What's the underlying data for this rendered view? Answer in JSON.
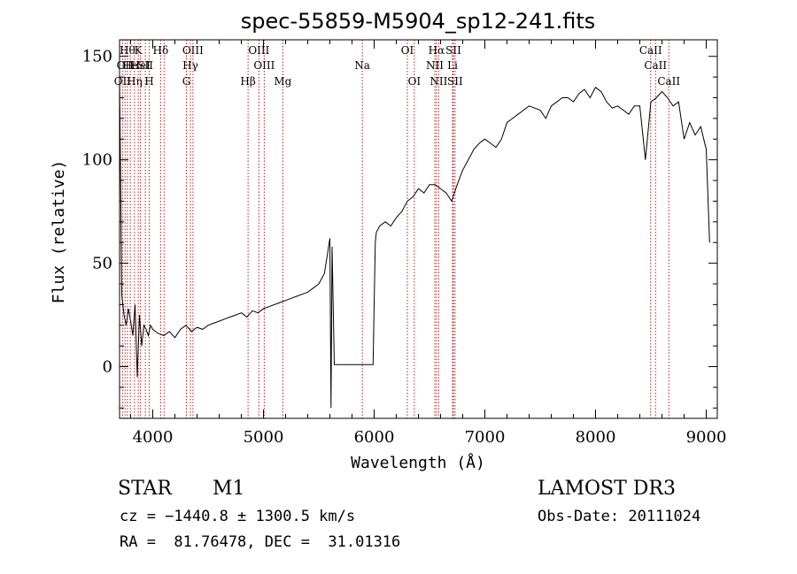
{
  "chart_data": {
    "type": "line",
    "title": "spec-55859-M5904_sp12-241.fits",
    "xlabel": "Wavelength (Å)",
    "ylabel": "Flux (relative)",
    "xlim": [
      3700,
      9100
    ],
    "ylim": [
      -25,
      158
    ],
    "xticks": [
      4000,
      5000,
      6000,
      7000,
      8000,
      9000
    ],
    "yticks": [
      0,
      50,
      100,
      150
    ],
    "grid": false,
    "series": [
      {
        "color": "#000000",
        "x": [
          3700,
          3720,
          3740,
          3760,
          3780,
          3800,
          3820,
          3840,
          3860,
          3880,
          3900,
          3920,
          3940,
          3960,
          3980,
          4000,
          4050,
          4100,
          4150,
          4200,
          4250,
          4300,
          4350,
          4400,
          4450,
          4500,
          4550,
          4600,
          4650,
          4700,
          4750,
          4800,
          4850,
          4900,
          4950,
          5000,
          5050,
          5100,
          5150,
          5200,
          5250,
          5300,
          5350,
          5400,
          5450,
          5500,
          5550,
          5580,
          5600,
          5610,
          5620,
          5640,
          5660,
          5700,
          5800,
          5900,
          5950,
          5990,
          6000,
          6010,
          6020,
          6050,
          6100,
          6150,
          6200,
          6250,
          6300,
          6350,
          6400,
          6450,
          6500,
          6550,
          6600,
          6650,
          6700,
          6750,
          6800,
          6850,
          6900,
          6950,
          7000,
          7050,
          7100,
          7150,
          7200,
          7250,
          7300,
          7350,
          7400,
          7450,
          7500,
          7550,
          7600,
          7650,
          7700,
          7750,
          7800,
          7850,
          7900,
          7950,
          8000,
          8050,
          8100,
          8150,
          8200,
          8250,
          8300,
          8350,
          8400,
          8450,
          8500,
          8550,
          8600,
          8650,
          8700,
          8750,
          8800,
          8850,
          8900,
          8950,
          9000,
          9030
        ],
        "y": [
          140,
          35,
          25,
          20,
          28,
          22,
          15,
          30,
          -5,
          25,
          10,
          20,
          18,
          15,
          20,
          18,
          16,
          15,
          17,
          14,
          18,
          20,
          17,
          19,
          18,
          20,
          21,
          22,
          23,
          24,
          25,
          26,
          24,
          27,
          26,
          28,
          29,
          30,
          31,
          32,
          33,
          34,
          35,
          36,
          38,
          40,
          45,
          55,
          62,
          -20,
          58,
          1,
          1,
          1,
          1,
          1,
          1,
          1,
          30,
          60,
          65,
          68,
          70,
          68,
          72,
          75,
          80,
          82,
          86,
          84,
          88,
          88,
          86,
          84,
          80,
          88,
          95,
          100,
          105,
          108,
          110,
          108,
          106,
          110,
          118,
          120,
          122,
          124,
          126,
          125,
          124,
          120,
          126,
          128,
          130,
          130,
          128,
          132,
          134,
          130,
          135,
          133,
          128,
          125,
          126,
          124,
          122,
          126,
          126,
          100,
          128,
          130,
          133,
          130,
          126,
          128,
          110,
          118,
          112,
          116,
          105,
          60
        ]
      }
    ],
    "lines": [
      {
        "wave": 3727,
        "label": "OII",
        "row": 2
      },
      {
        "wave": 3750,
        "label": "OII",
        "row": 1
      },
      {
        "wave": 3771,
        "label": "Hθ",
        "row": 0
      },
      {
        "wave": 3797,
        "label": "He",
        "row": 1
      },
      {
        "wave": 3835,
        "label": "Hη",
        "row": 2
      },
      {
        "wave": 3869,
        "label": "K",
        "row": 0
      },
      {
        "wave": 3889,
        "label": "HeI",
        "row": 1
      },
      {
        "wave": 3933,
        "label": "SII",
        "row": 1
      },
      {
        "wave": 3968,
        "label": "H",
        "row": 2
      },
      {
        "wave": 4071,
        "label": "Hδ",
        "row": 0
      },
      {
        "wave": 4102,
        "label": "",
        "row": 0
      },
      {
        "wave": 4304,
        "label": "G",
        "row": 2
      },
      {
        "wave": 4340,
        "label": "Hγ",
        "row": 1
      },
      {
        "wave": 4363,
        "label": "OIII",
        "row": 0
      },
      {
        "wave": 4861,
        "label": "Hβ",
        "row": 2
      },
      {
        "wave": 4959,
        "label": "OIII",
        "row": 0
      },
      {
        "wave": 5007,
        "label": "OIII",
        "row": 1
      },
      {
        "wave": 5175,
        "label": "Mg",
        "row": 2
      },
      {
        "wave": 5893,
        "label": "Na",
        "row": 1
      },
      {
        "wave": 6300,
        "label": "OI",
        "row": 0
      },
      {
        "wave": 6363,
        "label": "OI",
        "row": 2
      },
      {
        "wave": 6548,
        "label": "NII",
        "row": 1
      },
      {
        "wave": 6563,
        "label": "Hα",
        "row": 0
      },
      {
        "wave": 6583,
        "label": "NII",
        "row": 2
      },
      {
        "wave": 6708,
        "label": "Li",
        "row": 1
      },
      {
        "wave": 6716,
        "label": "SII",
        "row": 0
      },
      {
        "wave": 6731,
        "label": "SII",
        "row": 2
      },
      {
        "wave": 8498,
        "label": "CaII",
        "row": 0
      },
      {
        "wave": 8542,
        "label": "CaII",
        "row": 1
      },
      {
        "wave": 8662,
        "label": "CaII",
        "row": 2
      }
    ]
  },
  "info": {
    "objclass": "STAR",
    "subclass": "M1",
    "survey": "LAMOST DR3",
    "cz": "cz = −1440.8 ± 1300.5 km/s",
    "obsdate": "Obs-Date: 20111024",
    "coords": "RA =  81.76478, DEC =  31.01316"
  }
}
